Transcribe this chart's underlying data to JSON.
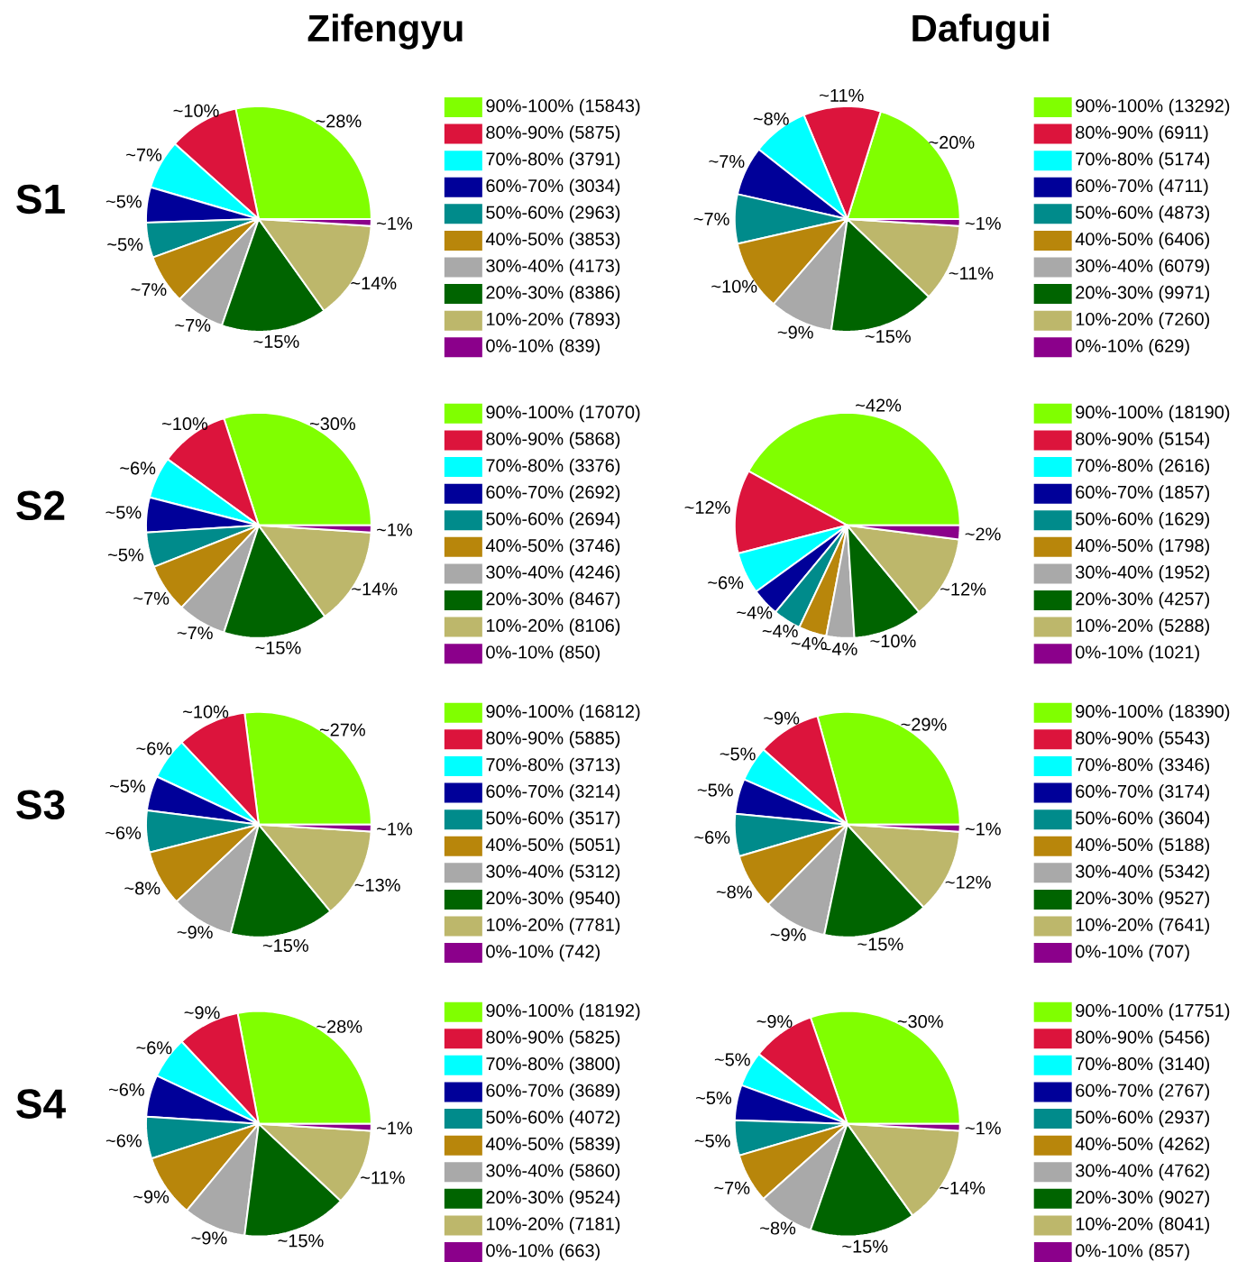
{
  "chart_data": [
    {
      "type": "pie",
      "title": "Zifengyu",
      "ylabel": "S1",
      "legend": "right",
      "categories": [
        "90%-100% (15843)",
        "80%-90% (5875)",
        "70%-80% (3791)",
        "60%-70% (3034)",
        "50%-60% (2963)",
        "40%-50% (3853)",
        "30%-40% (4173)",
        "20%-30% (8386)",
        "10%-20% (7893)",
        "0%-10% (839)"
      ],
      "values": [
        28,
        10,
        7,
        5,
        5,
        7,
        7,
        15,
        14,
        1
      ],
      "value_labels": [
        "~28%",
        "~10%",
        "~7%",
        "~5%",
        "~5%",
        "~7%",
        "~7%",
        "~15%",
        "~14%",
        "~1%"
      ],
      "colors": [
        "#80ff00",
        "#dc143c",
        "#00ffff",
        "#000099",
        "#008b8b",
        "#b8860b",
        "#a9a9a9",
        "#006400",
        "#bdb76b",
        "#8b008b"
      ]
    },
    {
      "type": "pie",
      "title": "Dafugui",
      "legend": "right",
      "categories": [
        "90%-100% (13292)",
        "80%-90% (6911)",
        "70%-80% (5174)",
        "60%-70% (4711)",
        "50%-60% (4873)",
        "40%-50% (6406)",
        "30%-40% (6079)",
        "20%-30% (9971)",
        "10%-20% (7260)",
        "0%-10% (629)"
      ],
      "values": [
        20,
        11,
        8,
        7,
        7,
        10,
        9,
        15,
        11,
        1
      ],
      "value_labels": [
        "~20%",
        "~11%",
        "~8%",
        "~7%",
        "~7%",
        "~10%",
        "~9%",
        "~15%",
        "~11%",
        "~1%"
      ],
      "colors": [
        "#80ff00",
        "#dc143c",
        "#00ffff",
        "#000099",
        "#008b8b",
        "#b8860b",
        "#a9a9a9",
        "#006400",
        "#bdb76b",
        "#8b008b"
      ]
    },
    {
      "type": "pie",
      "ylabel": "S2",
      "legend": "right",
      "categories": [
        "90%-100% (17070)",
        "80%-90% (5868)",
        "70%-80% (3376)",
        "60%-70% (2692)",
        "50%-60% (2694)",
        "40%-50% (3746)",
        "30%-40% (4246)",
        "20%-30% (8467)",
        "10%-20% (8106)",
        "0%-10% (850)"
      ],
      "values": [
        30,
        10,
        6,
        5,
        5,
        7,
        7,
        15,
        14,
        1
      ],
      "value_labels": [
        "~30%",
        "~10%",
        "~6%",
        "~5%",
        "~5%",
        "~7%",
        "~7%",
        "~15%",
        "~14%",
        "~1%"
      ],
      "colors": [
        "#80ff00",
        "#dc143c",
        "#00ffff",
        "#000099",
        "#008b8b",
        "#b8860b",
        "#a9a9a9",
        "#006400",
        "#bdb76b",
        "#8b008b"
      ]
    },
    {
      "type": "pie",
      "legend": "right",
      "categories": [
        "90%-100% (18190)",
        "80%-90% (5154)",
        "70%-80% (2616)",
        "60%-70% (1857)",
        "50%-60% (1629)",
        "40%-50% (1798)",
        "30%-40% (1952)",
        "20%-30% (4257)",
        "10%-20% (5288)",
        "0%-10% (1021)"
      ],
      "values": [
        42,
        12,
        6,
        4,
        4,
        4,
        4,
        10,
        12,
        2
      ],
      "value_labels": [
        "~42%",
        "~12%",
        "~6%",
        "~4%",
        "~4%",
        "~4%",
        "~4%",
        "~10%",
        "~12%",
        "~2%"
      ],
      "colors": [
        "#80ff00",
        "#dc143c",
        "#00ffff",
        "#000099",
        "#008b8b",
        "#b8860b",
        "#a9a9a9",
        "#006400",
        "#bdb76b",
        "#8b008b"
      ]
    },
    {
      "type": "pie",
      "ylabel": "S3",
      "legend": "right",
      "categories": [
        "90%-100% (16812)",
        "80%-90% (5885)",
        "70%-80% (3713)",
        "60%-70% (3214)",
        "50%-60% (3517)",
        "40%-50% (5051)",
        "30%-40% (5312)",
        "20%-30% (9540)",
        "10%-20% (7781)",
        "0%-10% (742)"
      ],
      "values": [
        27,
        10,
        6,
        5,
        6,
        8,
        9,
        15,
        13,
        1
      ],
      "value_labels": [
        "~27%",
        "~10%",
        "~6%",
        "~5%",
        "~6%",
        "~8%",
        "~9%",
        "~15%",
        "~13%",
        "~1%"
      ],
      "colors": [
        "#80ff00",
        "#dc143c",
        "#00ffff",
        "#000099",
        "#008b8b",
        "#b8860b",
        "#a9a9a9",
        "#006400",
        "#bdb76b",
        "#8b008b"
      ]
    },
    {
      "type": "pie",
      "legend": "right",
      "categories": [
        "90%-100% (18390)",
        "80%-90% (5543)",
        "70%-80% (3346)",
        "60%-70% (3174)",
        "50%-60% (3604)",
        "40%-50% (5188)",
        "30%-40% (5342)",
        "20%-30% (9527)",
        "10%-20% (7641)",
        "0%-10% (707)"
      ],
      "values": [
        29,
        9,
        5,
        5,
        6,
        8,
        9,
        15,
        12,
        1
      ],
      "value_labels": [
        "~29%",
        "~9%",
        "~5%",
        "~5%",
        "~6%",
        "~8%",
        "~9%",
        "~15%",
        "~12%",
        "~1%"
      ],
      "colors": [
        "#80ff00",
        "#dc143c",
        "#00ffff",
        "#000099",
        "#008b8b",
        "#b8860b",
        "#a9a9a9",
        "#006400",
        "#bdb76b",
        "#8b008b"
      ]
    },
    {
      "type": "pie",
      "ylabel": "S4",
      "legend": "right",
      "categories": [
        "90%-100% (18192)",
        "80%-90% (5825)",
        "70%-80% (3800)",
        "60%-70% (3689)",
        "50%-60% (4072)",
        "40%-50% (5839)",
        "30%-40% (5860)",
        "20%-30% (9524)",
        "10%-20% (7181)",
        "0%-10% (663)"
      ],
      "values": [
        28,
        9,
        6,
        6,
        6,
        9,
        9,
        15,
        11,
        1
      ],
      "value_labels": [
        "~28%",
        "~9%",
        "~6%",
        "~6%",
        "~6%",
        "~9%",
        "~9%",
        "~15%",
        "~11%",
        "~1%"
      ],
      "colors": [
        "#80ff00",
        "#dc143c",
        "#00ffff",
        "#000099",
        "#008b8b",
        "#b8860b",
        "#a9a9a9",
        "#006400",
        "#bdb76b",
        "#8b008b"
      ]
    },
    {
      "type": "pie",
      "legend": "right",
      "categories": [
        "90%-100% (17751)",
        "80%-90% (5456)",
        "70%-80% (3140)",
        "60%-70% (2767)",
        "50%-60% (2937)",
        "40%-50% (4262)",
        "30%-40% (4762)",
        "20%-30% (9027)",
        "10%-20% (8041)",
        "0%-10% (857)"
      ],
      "values": [
        30,
        9,
        5,
        5,
        5,
        7,
        8,
        15,
        14,
        1
      ],
      "value_labels": [
        "~30%",
        "~9%",
        "~5%",
        "~5%",
        "~5%",
        "~7%",
        "~8%",
        "~15%",
        "~14%",
        "~1%"
      ],
      "colors": [
        "#80ff00",
        "#dc143c",
        "#00ffff",
        "#000099",
        "#008b8b",
        "#b8860b",
        "#a9a9a9",
        "#006400",
        "#bdb76b",
        "#8b008b"
      ]
    }
  ]
}
